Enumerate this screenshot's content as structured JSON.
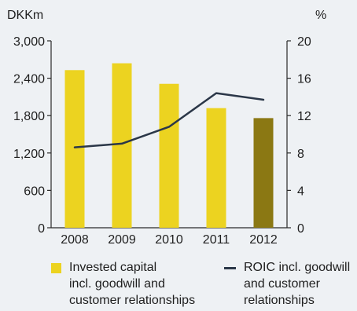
{
  "chart_data": {
    "type": "bar",
    "categories": [
      "2008",
      "2009",
      "2010",
      "2011",
      "2012"
    ],
    "series": [
      {
        "name": "Invested capital incl. goodwill and customer relationships",
        "type": "bar",
        "axis": "left",
        "values": [
          2530,
          2640,
          2310,
          1920,
          1760
        ],
        "colors": [
          "#ecd320",
          "#ecd320",
          "#ecd320",
          "#ecd320",
          "#8b7813"
        ]
      },
      {
        "name": "ROIC incl. goodwill and customer relationships",
        "type": "line",
        "axis": "right",
        "values": [
          8.6,
          9.0,
          10.8,
          14.4,
          13.7
        ],
        "color": "#2b3748"
      }
    ],
    "left_axis": {
      "unit": "DKKm",
      "ylim": [
        0,
        3000
      ],
      "ticks": [
        "0",
        "600",
        "1,200",
        "1,800",
        "2,400",
        "3,000"
      ]
    },
    "right_axis": {
      "unit": "%",
      "ylim": [
        0,
        20
      ],
      "ticks": [
        "0",
        "4",
        "8",
        "12",
        "16",
        "20"
      ]
    },
    "grid": false,
    "legend_position": "bottom"
  },
  "legend": {
    "bar_label": "Invested capital\nincl. goodwill and\ncustomer relationships",
    "line_label": "ROIC incl. goodwill\nand customer\nrelationships"
  }
}
